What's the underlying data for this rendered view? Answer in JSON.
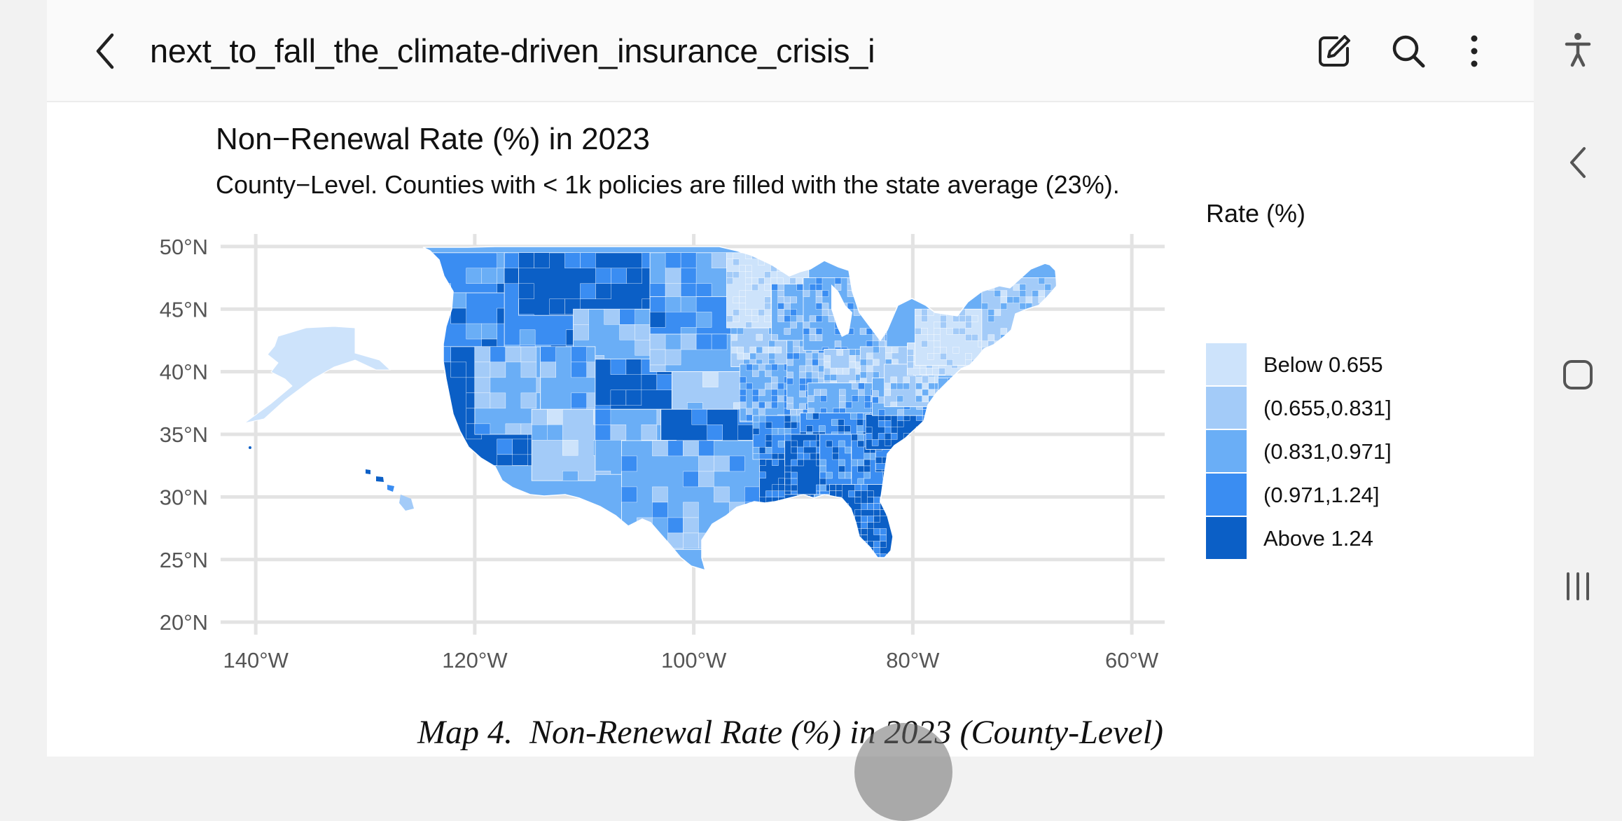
{
  "app_bar": {
    "title": "next_to_fall_the_climate-driven_insurance_crisis_i",
    "back_icon": "chevron-left-icon",
    "edit_icon": "edit-pen-icon",
    "search_icon": "search-icon",
    "more_icon": "more-vertical-icon"
  },
  "system_rail": {
    "accessibility_icon": "accessibility-icon",
    "back_icon": "back-chevron-icon",
    "home_icon": "home-square-icon",
    "recents_icon": "recents-lines-icon"
  },
  "caption": "Map 4.  Non-Renewal Rate (%) in 2023 (County-Level)",
  "colors": {
    "bin1": "#cde3fb",
    "bin2": "#a3cbf8",
    "bin3": "#6aaef6",
    "bin4": "#3a8df2",
    "bin5": "#0b5fc6",
    "grid": "#e3e3e3"
  },
  "chart_data": {
    "type": "heatmap",
    "title": "Non−Renewal Rate (%) in 2023",
    "subtitle": "County−Level. Counties with < 1k policies are filled with the state average (23%).",
    "xlim": [
      -145,
      -57
    ],
    "ylim": [
      19,
      51
    ],
    "x_ticks": [
      {
        "value": -140,
        "label": "140°W"
      },
      {
        "value": -120,
        "label": "120°W"
      },
      {
        "value": -100,
        "label": "100°W"
      },
      {
        "value": -80,
        "label": "80°W"
      },
      {
        "value": -60,
        "label": "60°W"
      }
    ],
    "y_ticks": [
      {
        "value": 50,
        "label": "50°N"
      },
      {
        "value": 45,
        "label": "45°N"
      },
      {
        "value": 40,
        "label": "40°N"
      },
      {
        "value": 35,
        "label": "35°N"
      },
      {
        "value": 30,
        "label": "30°N"
      },
      {
        "value": 25,
        "label": "25°N"
      },
      {
        "value": 20,
        "label": "20°N"
      }
    ],
    "grid": true,
    "legend": {
      "title": "Rate (%)",
      "position": "right",
      "items": [
        {
          "label": "Below 0.655",
          "color": "#cde3fb"
        },
        {
          "label": "(0.655,0.831]",
          "color": "#a3cbf8"
        },
        {
          "label": "(0.831,0.971]",
          "color": "#6aaef6"
        },
        {
          "label": "(0.971,1.24]",
          "color": "#3a8df2"
        },
        {
          "label": "Above 1.24",
          "color": "#0b5fc6"
        }
      ]
    },
    "regions": [
      {
        "name": "Washington",
        "bin": 4
      },
      {
        "name": "Oregon",
        "bin": 4
      },
      {
        "name": "California",
        "bin": 5
      },
      {
        "name": "Nevada",
        "bin": 3
      },
      {
        "name": "Idaho",
        "bin": 4
      },
      {
        "name": "Montana",
        "bin": 5
      },
      {
        "name": "Wyoming",
        "bin": 3
      },
      {
        "name": "Utah",
        "bin": 3
      },
      {
        "name": "Arizona",
        "bin": 2
      },
      {
        "name": "Colorado",
        "bin": 5
      },
      {
        "name": "New Mexico",
        "bin": 3
      },
      {
        "name": "North Dakota",
        "bin": 3
      },
      {
        "name": "South Dakota",
        "bin": 4
      },
      {
        "name": "Nebraska",
        "bin": 3
      },
      {
        "name": "Kansas",
        "bin": 2
      },
      {
        "name": "Oklahoma",
        "bin": 5
      },
      {
        "name": "Texas",
        "bin": 3
      },
      {
        "name": "Minnesota",
        "bin": 1
      },
      {
        "name": "Iowa",
        "bin": 2
      },
      {
        "name": "Missouri",
        "bin": 3
      },
      {
        "name": "Arkansas",
        "bin": 4
      },
      {
        "name": "Louisiana",
        "bin": 5
      },
      {
        "name": "Wisconsin",
        "bin": 3
      },
      {
        "name": "Illinois",
        "bin": 3
      },
      {
        "name": "Michigan",
        "bin": 3
      },
      {
        "name": "Indiana",
        "bin": 2
      },
      {
        "name": "Ohio",
        "bin": 2
      },
      {
        "name": "Kentucky",
        "bin": 3
      },
      {
        "name": "Tennessee",
        "bin": 4
      },
      {
        "name": "Mississippi",
        "bin": 5
      },
      {
        "name": "Alabama",
        "bin": 4
      },
      {
        "name": "Georgia",
        "bin": 4
      },
      {
        "name": "Florida",
        "bin": 5
      },
      {
        "name": "South Carolina",
        "bin": 4
      },
      {
        "name": "North Carolina",
        "bin": 5
      },
      {
        "name": "Virginia",
        "bin": 3
      },
      {
        "name": "West Virginia",
        "bin": 2
      },
      {
        "name": "Pennsylvania",
        "bin": 1
      },
      {
        "name": "New York",
        "bin": 1
      },
      {
        "name": "New England",
        "bin": 2
      },
      {
        "name": "Alaska",
        "bin": 1
      },
      {
        "name": "Hawaii",
        "bin": 4
      }
    ]
  }
}
